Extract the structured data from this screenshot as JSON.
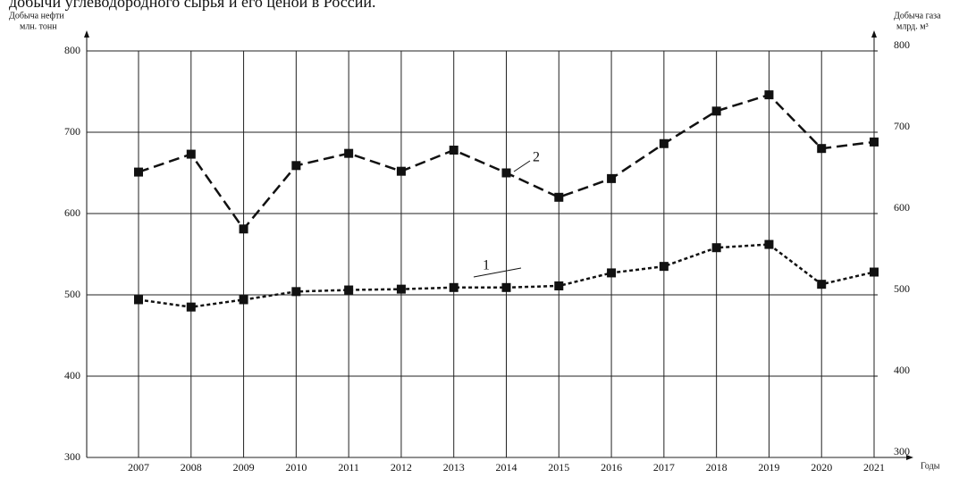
{
  "chart_data": {
    "type": "line",
    "title": "добычи углеводородного сырья и его ценой в России.",
    "y_label": [
      "Добыча нефти",
      "млн. тонн"
    ],
    "y2_label": [
      "Добыча газа",
      "млрд. м³"
    ],
    "x_label": "Годы",
    "categories": [
      "2007",
      "2008",
      "2009",
      "2010",
      "2011",
      "2012",
      "2013",
      "2014",
      "2015",
      "2016",
      "2017",
      "2018",
      "2019",
      "2020",
      "2021"
    ],
    "series": [
      {
        "name": "1",
        "color": "#111111",
        "dash": "4 3",
        "values": [
          494,
          485,
          494,
          504,
          506,
          507,
          509,
          509,
          511,
          527,
          535,
          558,
          562,
          513,
          528
        ]
      },
      {
        "name": "2",
        "color": "#111111",
        "dash": "12 6",
        "axis": "y2",
        "values": [
          651,
          673,
          581,
          659,
          674,
          652,
          678,
          650,
          620,
          643,
          686,
          726,
          746,
          680,
          688
        ]
      }
    ],
    "ylim": [
      300,
      800
    ],
    "yticks": [
      300,
      400,
      500,
      600,
      700,
      800
    ],
    "y2lim": [
      300,
      800
    ],
    "y2ticks": [
      300,
      400,
      500,
      600,
      700,
      800
    ],
    "grid": true
  }
}
